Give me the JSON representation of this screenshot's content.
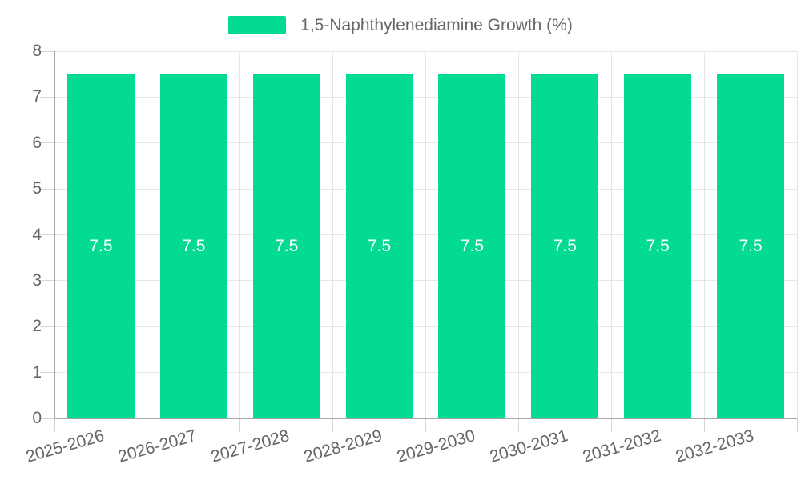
{
  "chart_data": {
    "type": "bar",
    "title": "",
    "xlabel": "",
    "ylabel": "",
    "legend": {
      "label": "1,5-Naphthylenediamine Growth (%)",
      "position": "top"
    },
    "categories": [
      "2025-2026",
      "2026-2027",
      "2027-2028",
      "2028-2029",
      "2029-2030",
      "2030-2031",
      "2031-2032",
      "2032-2033"
    ],
    "series": [
      {
        "name": "1,5-Naphthylenediamine Growth (%)",
        "values": [
          7.5,
          7.5,
          7.5,
          7.5,
          7.5,
          7.5,
          7.5,
          7.5
        ],
        "value_labels": [
          "7.5",
          "7.5",
          "7.5",
          "7.5",
          "7.5",
          "7.5",
          "7.5",
          "7.5"
        ]
      }
    ],
    "ylim": [
      0,
      8
    ],
    "yticks": [
      "0",
      "1",
      "2",
      "3",
      "4",
      "5",
      "6",
      "7",
      "8"
    ],
    "grid": true,
    "colors": {
      "bar": "#03DB90",
      "value_label": "#FFFFFF",
      "axis_text": "#666666",
      "grid_line": "#E6E6E6",
      "tick_line": "#D6D6D6",
      "axis_line": "#A8A8A8",
      "background": "#FFFFFF"
    }
  }
}
